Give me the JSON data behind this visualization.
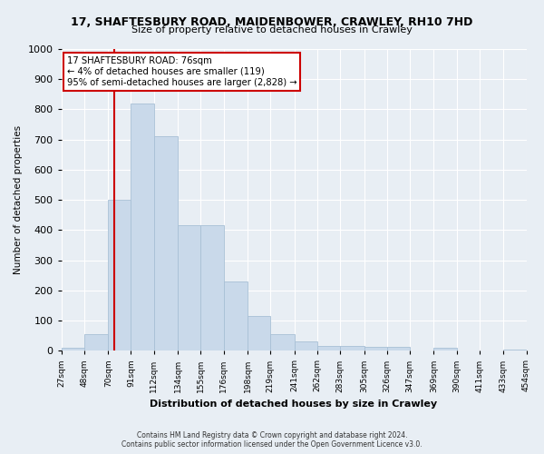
{
  "title1": "17, SHAFTESBURY ROAD, MAIDENBOWER, CRAWLEY, RH10 7HD",
  "title2": "Size of property relative to detached houses in Crawley",
  "xlabel": "Distribution of detached houses by size in Crawley",
  "ylabel": "Number of detached properties",
  "footer1": "Contains HM Land Registry data © Crown copyright and database right 2024.",
  "footer2": "Contains public sector information licensed under the Open Government Licence v3.0.",
  "annotation_line1": "17 SHAFTESBURY ROAD: 76sqm",
  "annotation_line2": "← 4% of detached houses are smaller (119)",
  "annotation_line3": "95% of semi-detached houses are larger (2,828) →",
  "bar_color": "#c9d9ea",
  "bar_edge_color": "#a8c0d6",
  "vline_color": "#cc0000",
  "vline_x": 76,
  "bin_edges": [
    27,
    48,
    70,
    91,
    112,
    134,
    155,
    176,
    198,
    219,
    241,
    262,
    283,
    305,
    326,
    347,
    369,
    390,
    411,
    433,
    454
  ],
  "values": [
    10,
    55,
    500,
    820,
    710,
    415,
    415,
    230,
    115,
    55,
    30,
    15,
    15,
    12,
    12,
    0,
    10,
    0,
    0,
    5,
    0
  ],
  "ylim": [
    0,
    1000
  ],
  "background_color": "#e8eef4",
  "plot_bg_color": "#e8eef4",
  "grid_color": "#ffffff",
  "tick_labels": [
    "27sqm",
    "48sqm",
    "70sqm",
    "91sqm",
    "112sqm",
    "134sqm",
    "155sqm",
    "176sqm",
    "198sqm",
    "219sqm",
    "241sqm",
    "262sqm",
    "283sqm",
    "305sqm",
    "326sqm",
    "347sqm",
    "369sqm",
    "390sqm",
    "411sqm",
    "433sqm",
    "454sqm"
  ]
}
